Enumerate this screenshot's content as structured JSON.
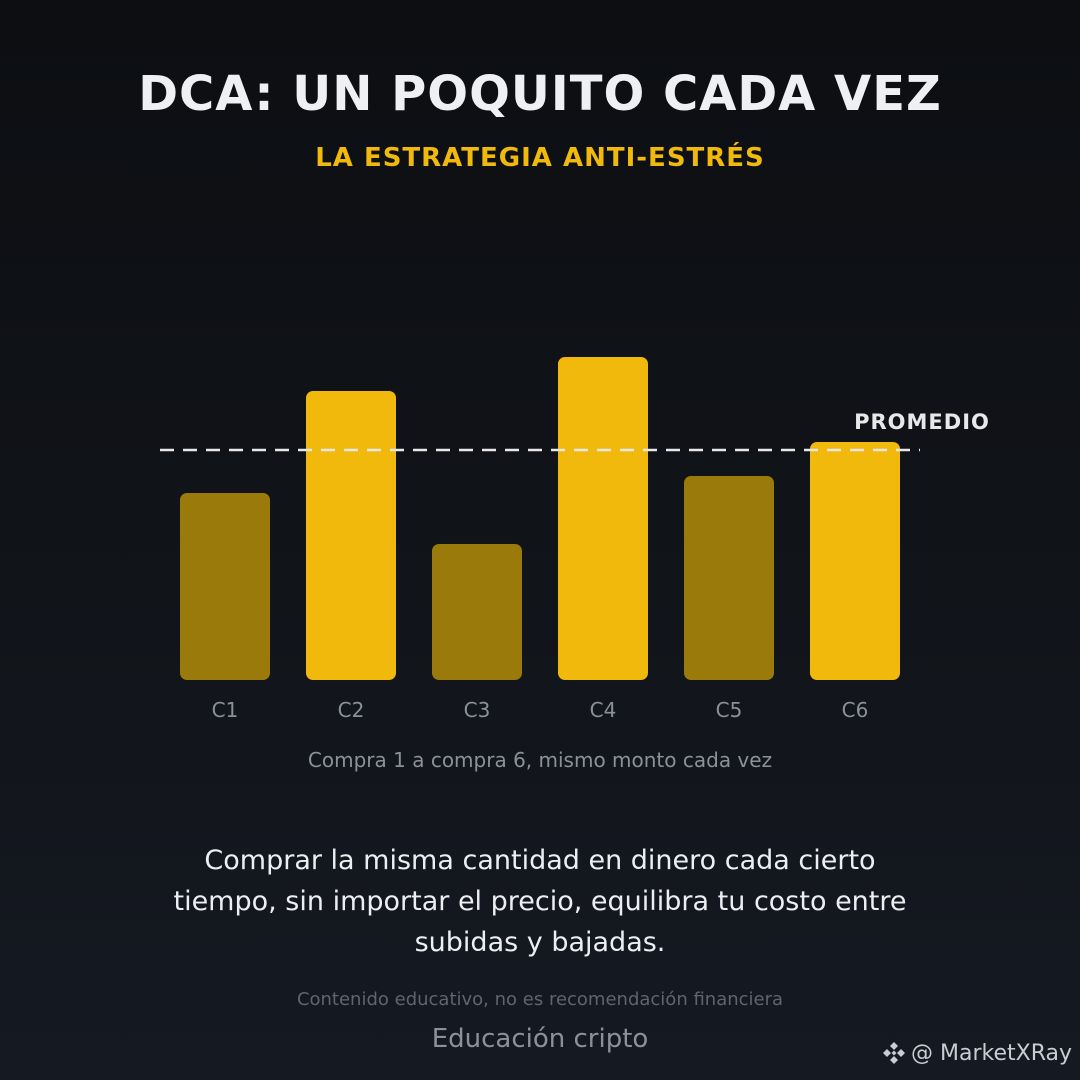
{
  "chart_data": {
    "type": "bar",
    "title": "DCA: UN POQUITO CADA VEZ",
    "subtitle": "LA ESTRATEGIA ANTI-ESTRÉS",
    "categories": [
      "C1",
      "C2",
      "C3",
      "C4",
      "C5",
      "C6"
    ],
    "values": [
      187,
      289,
      136,
      323,
      204,
      238
    ],
    "colors": [
      "#9a7a0a",
      "#f0b90b",
      "#9a7a0a",
      "#f0b90b",
      "#9a7a0a",
      "#f0b90b"
    ],
    "ylim": [
      0,
      340
    ],
    "average": 230,
    "average_label": "PROMEDIO",
    "average_color": "#e8e8e8",
    "x_label": "Compra 1 a compra 6, mismo monto cada vez",
    "description": "Comprar la misma cantidad en dinero cada cierto tiempo, sin importar el precio, equilibra tu costo entre subidas y bajadas.",
    "disclaimer": "Contenido educativo, no es recomendación financiera",
    "footer": "Educación cripto",
    "watermark": "@ MarketXRay"
  }
}
